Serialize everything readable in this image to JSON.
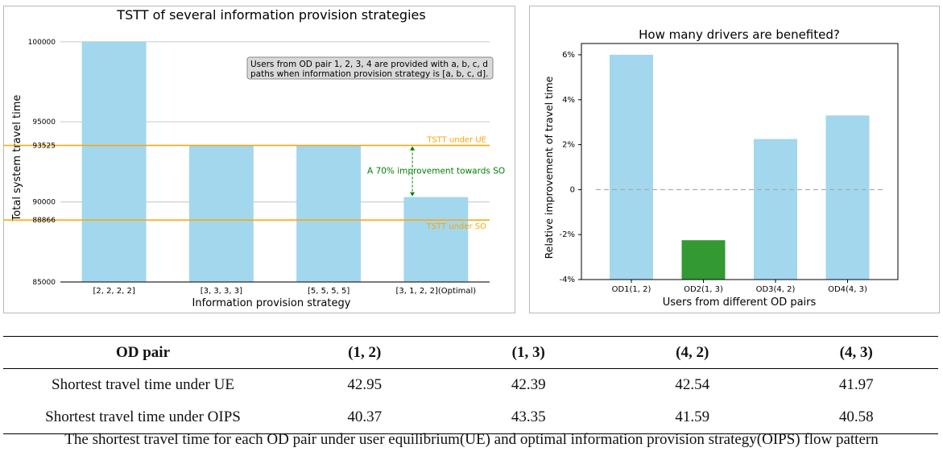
{
  "chart_data": [
    {
      "type": "bar",
      "title": "TSTT of several information provision strategies",
      "xlabel": "Information provision strategy",
      "ylabel": "Total system travel time",
      "categories": [
        "[2, 2, 2, 2]",
        "[3, 3, 3, 3]",
        "[5, 5, 5, 5]",
        "[3, 1, 2, 2](Optimal)"
      ],
      "values": [
        100000,
        93525,
        93525,
        90300
      ],
      "ylim": [
        85000,
        101500
      ],
      "yticks": [
        "100000",
        "95000",
        "93525",
        "90000",
        "88866",
        "85000"
      ],
      "ytick_values": [
        100000,
        95000,
        93525,
        90000,
        88866,
        85000
      ],
      "bar_color": "#a2d7ee",
      "hlines": [
        {
          "label": "TSTT under UE",
          "value": 93525,
          "color": "#ffa500"
        },
        {
          "label": "TSTT under SO",
          "value": 88866,
          "color": "#ffa500"
        }
      ],
      "annotation": "A 70% improvement towards SO",
      "annotation_color": "#008000",
      "note": "Users from OD pair 1, 2, 3, 4 are provided with a, b, c, d\npaths when information provision strategy is [a, b, c, d].",
      "grid": "y",
      "legend": "none"
    },
    {
      "type": "bar",
      "title": "How many drivers are benefited?",
      "xlabel": "Users from different OD pairs",
      "ylabel": "Relative improvement of travel time",
      "categories": [
        "OD1(1, 2)",
        "OD2(1, 3)",
        "OD3(4, 2)",
        "OD4(4, 3)"
      ],
      "values": [
        6.0,
        -2.25,
        2.25,
        3.3
      ],
      "colors": [
        "#a2d7ee",
        "#339933",
        "#a2d7ee",
        "#a2d7ee"
      ],
      "ylim": [
        -4,
        6.5
      ],
      "yticks": [
        "6%",
        "4%",
        "2%",
        "0",
        "-2%",
        "-4%"
      ],
      "ytick_values": [
        6,
        4,
        2,
        0,
        -2,
        -4
      ],
      "zero_line": "dashed",
      "grid": "none",
      "legend": "none"
    }
  ],
  "table": {
    "headers": [
      "OD pair",
      "(1, 2)",
      "(1, 3)",
      "(4, 2)",
      "(4, 3)"
    ],
    "rows": [
      [
        "Shortest travel time under UE",
        "42.95",
        "42.39",
        "42.54",
        "41.97"
      ],
      [
        "Shortest travel time under OIPS",
        "40.37",
        "43.35",
        "41.59",
        "40.58"
      ]
    ],
    "caption": "The shortest travel time for each OD pair under user equilibrium(UE) and optimal information provision strategy(OIPS) flow pattern"
  }
}
